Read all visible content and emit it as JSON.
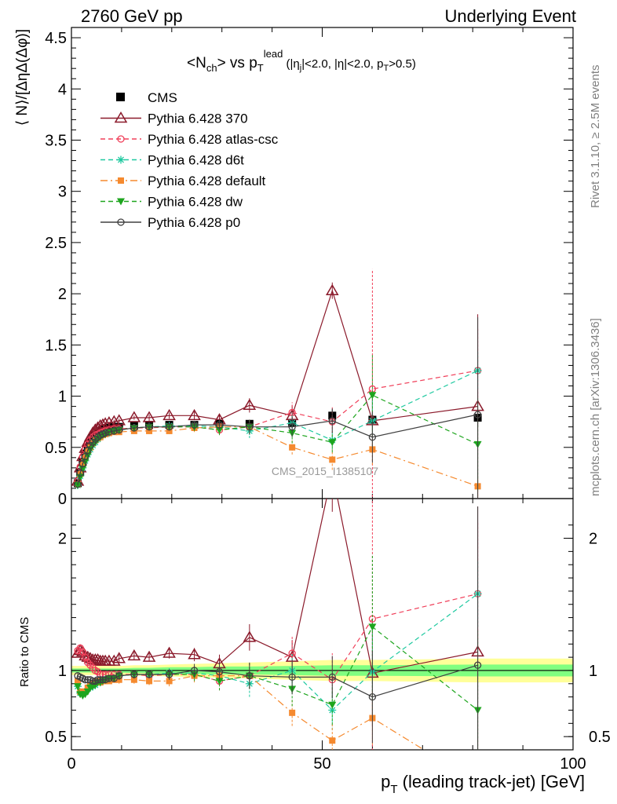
{
  "header": {
    "left": "2760 GeV pp",
    "right": "Underlying Event"
  },
  "side_text": {
    "rivet": "Rivet 3.1.10, ≥ 2.5M events",
    "mcplots": "mcplots.cern.ch [arXiv:1306.3436]"
  },
  "watermark": "CMS_2015_I1385107",
  "colors": {
    "CMS": "#000000",
    "Pythia 6.428 370": "#8b1a2b",
    "Pythia 6.428 atlas-csc": "#f0405a",
    "Pythia 6.428 d6t": "#1fc9a0",
    "Pythia 6.428 default": "#f58a2f",
    "Pythia 6.428 dw": "#1ea51e",
    "Pythia 6.428 p0": "#404040",
    "band_inner": "#80ff80",
    "band_outer": "#ffff99"
  },
  "chart_data": [
    {
      "type": "line",
      "panel": "main",
      "title_parts": {
        "a": "<N",
        "b": "ch",
        "c": "> vs p",
        "d": "T",
        "e": "lead",
        "f": " (|η",
        "g": "j",
        "h": "|<2.0, |η|<2.0, p",
        "i": "T",
        "j": ">0.5)"
      },
      "ylabel": "⟨ N⟩/[ΔηΔ(Δφ)]",
      "xlim": [
        0,
        100
      ],
      "ylim": [
        0,
        4.6
      ],
      "yticks": [
        "0",
        "0.5",
        "1",
        "1.5",
        "2",
        "2.5",
        "3",
        "3.5",
        "4",
        "4.5"
      ],
      "legend": "top-left",
      "x": [
        1.25,
        1.75,
        2.25,
        2.75,
        3.25,
        3.75,
        4.25,
        4.75,
        5.25,
        5.75,
        6.25,
        6.75,
        7.5,
        8.5,
        9.5,
        12.5,
        15.5,
        19.5,
        24.5,
        29.5,
        35.5,
        44.0,
        52.0,
        60.0,
        81.0
      ],
      "series": [
        {
          "name": "CMS",
          "style": "square",
          "values": [
            0.15,
            0.26,
            0.36,
            0.44,
            0.5,
            0.55,
            0.59,
            0.62,
            0.64,
            0.66,
            0.67,
            0.68,
            0.69,
            0.7,
            0.7,
            0.71,
            0.72,
            0.72,
            0.72,
            0.73,
            0.73,
            0.74,
            0.81,
            0.77,
            0.79
          ],
          "err": [
            0.01,
            0.01,
            0.01,
            0.01,
            0.01,
            0.01,
            0.01,
            0.01,
            0.01,
            0.01,
            0.01,
            0.01,
            0.01,
            0.01,
            0.01,
            0.01,
            0.02,
            0.02,
            0.02,
            0.03,
            0.04,
            0.05,
            0.06,
            0.07,
            0.09
          ]
        },
        {
          "name": "Pythia 6.428 370",
          "style": "triangle-open",
          "values": [
            0.17,
            0.3,
            0.41,
            0.49,
            0.55,
            0.6,
            0.64,
            0.67,
            0.69,
            0.71,
            0.72,
            0.73,
            0.74,
            0.75,
            0.76,
            0.79,
            0.79,
            0.81,
            0.81,
            0.77,
            0.91,
            0.81,
            2.03,
            0.76,
            0.9
          ],
          "err": [
            0.01,
            0.01,
            0.01,
            0.01,
            0.01,
            0.01,
            0.01,
            0.01,
            0.01,
            0.01,
            0.01,
            0.01,
            0.01,
            0.02,
            0.02,
            0.02,
            0.03,
            0.03,
            0.04,
            0.05,
            0.07,
            0.1,
            0.08,
            0.3,
            0.9
          ]
        },
        {
          "name": "Pythia 6.428 atlas-csc",
          "style": "circle-open",
          "values": [
            0.17,
            0.31,
            0.41,
            0.48,
            0.53,
            0.57,
            0.6,
            0.62,
            0.63,
            0.64,
            0.65,
            0.66,
            0.67,
            0.68,
            0.68,
            0.69,
            0.69,
            0.7,
            0.7,
            0.67,
            0.7,
            0.84,
            0.75,
            1.07,
            1.25
          ],
          "err": [
            0.01,
            0.01,
            0.01,
            0.01,
            0.01,
            0.01,
            0.01,
            0.01,
            0.01,
            0.01,
            0.01,
            0.01,
            0.01,
            0.02,
            0.02,
            0.02,
            0.03,
            0.03,
            0.04,
            0.05,
            0.07,
            0.1,
            0.15,
            1.17,
            0.42
          ]
        },
        {
          "name": "Pythia 6.428 d6t",
          "style": "star",
          "values": [
            0.13,
            0.22,
            0.3,
            0.37,
            0.43,
            0.48,
            0.52,
            0.55,
            0.58,
            0.6,
            0.62,
            0.63,
            0.64,
            0.66,
            0.67,
            0.69,
            0.7,
            0.71,
            0.71,
            0.7,
            0.66,
            0.74,
            0.57,
            0.76,
            1.25
          ],
          "err": [
            0.01,
            0.01,
            0.01,
            0.01,
            0.01,
            0.01,
            0.01,
            0.01,
            0.01,
            0.01,
            0.01,
            0.01,
            0.01,
            0.02,
            0.02,
            0.02,
            0.03,
            0.03,
            0.04,
            0.05,
            0.07,
            0.1,
            0.1,
            0.25,
            0.18
          ]
        },
        {
          "name": "Pythia 6.428 default",
          "style": "square-dashdot",
          "values": [
            0.14,
            0.24,
            0.33,
            0.4,
            0.46,
            0.5,
            0.54,
            0.57,
            0.59,
            0.6,
            0.62,
            0.63,
            0.64,
            0.65,
            0.65,
            0.66,
            0.66,
            0.66,
            0.69,
            0.7,
            0.7,
            0.5,
            0.38,
            0.48,
            0.12
          ],
          "err": [
            0.01,
            0.01,
            0.01,
            0.01,
            0.01,
            0.01,
            0.01,
            0.01,
            0.01,
            0.01,
            0.01,
            0.01,
            0.01,
            0.02,
            0.02,
            0.02,
            0.03,
            0.03,
            0.04,
            0.05,
            0.07,
            0.07,
            0.1,
            0.15,
            0.1
          ]
        },
        {
          "name": "Pythia 6.428 dw",
          "style": "triangle-down",
          "values": [
            0.13,
            0.21,
            0.29,
            0.36,
            0.42,
            0.48,
            0.52,
            0.55,
            0.58,
            0.6,
            0.62,
            0.63,
            0.65,
            0.66,
            0.67,
            0.69,
            0.7,
            0.7,
            0.7,
            0.67,
            0.7,
            0.64,
            0.55,
            1.01,
            0.53
          ],
          "err": [
            0.01,
            0.01,
            0.01,
            0.01,
            0.01,
            0.01,
            0.01,
            0.01,
            0.01,
            0.01,
            0.01,
            0.01,
            0.01,
            0.02,
            0.02,
            0.02,
            0.03,
            0.03,
            0.04,
            0.05,
            0.07,
            0.1,
            0.1,
            0.4,
            0.45
          ]
        },
        {
          "name": "Pythia 6.428 p0",
          "style": "circle-solid-line",
          "values": [
            0.14,
            0.25,
            0.34,
            0.41,
            0.47,
            0.52,
            0.55,
            0.58,
            0.6,
            0.62,
            0.63,
            0.64,
            0.65,
            0.66,
            0.67,
            0.69,
            0.7,
            0.7,
            0.72,
            0.72,
            0.7,
            0.7,
            0.76,
            0.6,
            0.82
          ],
          "err": [
            0.01,
            0.01,
            0.01,
            0.01,
            0.01,
            0.01,
            0.01,
            0.01,
            0.01,
            0.01,
            0.01,
            0.01,
            0.01,
            0.02,
            0.02,
            0.02,
            0.03,
            0.03,
            0.04,
            0.05,
            0.07,
            0.1,
            0.12,
            0.25,
            0.95
          ]
        }
      ]
    },
    {
      "type": "line",
      "panel": "ratio",
      "ylabel": "Ratio to CMS",
      "xlabel_parts": {
        "a": "p",
        "b": "T",
        "c": " (leading track-jet) [GeV]"
      },
      "xlim": [
        0,
        100
      ],
      "xticks": [
        "0",
        "50",
        "100"
      ],
      "ylim": [
        0.4,
        2.3
      ],
      "yticks": [
        "0.5",
        "1",
        "2"
      ],
      "reference": 1,
      "band": {
        "x": [
          0,
          1.25,
          1.75,
          2.25,
          2.75,
          3.25,
          3.75,
          4.25,
          4.75,
          5.25,
          5.75,
          6.25,
          6.75,
          7.5,
          8.5,
          9.5,
          12.5,
          15.5,
          19.5,
          24.5,
          29.5,
          35.5,
          44.0,
          52.0,
          60.0,
          81.0,
          100
        ],
        "inner": [
          0.015,
          0.015,
          0.015,
          0.015,
          0.015,
          0.015,
          0.015,
          0.015,
          0.015,
          0.015,
          0.015,
          0.015,
          0.015,
          0.015,
          0.015,
          0.015,
          0.02,
          0.02,
          0.025,
          0.025,
          0.03,
          0.03,
          0.035,
          0.04,
          0.04,
          0.045,
          0.045
        ],
        "outer": [
          0.035,
          0.035,
          0.035,
          0.035,
          0.035,
          0.035,
          0.035,
          0.035,
          0.035,
          0.035,
          0.035,
          0.035,
          0.035,
          0.035,
          0.035,
          0.035,
          0.04,
          0.04,
          0.045,
          0.05,
          0.055,
          0.06,
          0.07,
          0.08,
          0.08,
          0.09,
          0.09
        ]
      },
      "series": [
        {
          "name": "Pythia 6.428 370",
          "style": "triangle-open",
          "values": [
            1.13,
            1.15,
            1.14,
            1.11,
            1.1,
            1.09,
            1.08,
            1.08,
            1.08,
            1.07,
            1.07,
            1.07,
            1.07,
            1.07,
            1.09,
            1.11,
            1.1,
            1.13,
            1.12,
            1.05,
            1.25,
            1.1,
            2.5,
            0.98,
            1.14
          ],
          "err": [
            0.02,
            0.02,
            0.02,
            0.02,
            0.02,
            0.02,
            0.02,
            0.02,
            0.02,
            0.02,
            0.02,
            0.02,
            0.02,
            0.02,
            0.03,
            0.03,
            0.03,
            0.04,
            0.05,
            0.07,
            0.1,
            0.13,
            0.3,
            0.4,
            1.1
          ]
        },
        {
          "name": "Pythia 6.428 atlas-csc",
          "style": "circle-open",
          "values": [
            1.15,
            1.17,
            1.14,
            1.1,
            1.06,
            1.04,
            1.02,
            1.0,
            0.99,
            0.97,
            0.97,
            0.97,
            0.97,
            0.97,
            0.97,
            0.97,
            0.96,
            0.97,
            0.97,
            0.92,
            0.96,
            1.13,
            0.93,
            1.39,
            1.58
          ],
          "err": [
            0.02,
            0.02,
            0.02,
            0.02,
            0.02,
            0.02,
            0.02,
            0.02,
            0.02,
            0.02,
            0.02,
            0.02,
            0.02,
            0.02,
            0.03,
            0.03,
            0.03,
            0.04,
            0.05,
            0.07,
            0.1,
            0.13,
            0.2,
            1.5,
            0.55
          ]
        },
        {
          "name": "Pythia 6.428 d6t",
          "style": "star",
          "values": [
            0.88,
            0.83,
            0.83,
            0.84,
            0.86,
            0.87,
            0.88,
            0.89,
            0.91,
            0.91,
            0.92,
            0.93,
            0.93,
            0.94,
            0.96,
            0.97,
            0.97,
            0.98,
            0.98,
            0.96,
            0.9,
            1.0,
            0.7,
            0.99,
            1.58
          ],
          "err": [
            0.02,
            0.02,
            0.02,
            0.02,
            0.02,
            0.02,
            0.02,
            0.02,
            0.02,
            0.02,
            0.02,
            0.02,
            0.02,
            0.02,
            0.03,
            0.03,
            0.03,
            0.04,
            0.05,
            0.07,
            0.1,
            0.13,
            0.15,
            0.35,
            0.25
          ]
        },
        {
          "name": "Pythia 6.428 default",
          "style": "square-dashdot",
          "values": [
            0.92,
            0.84,
            0.84,
            0.84,
            0.87,
            0.89,
            0.9,
            0.91,
            0.92,
            0.91,
            0.92,
            0.92,
            0.92,
            0.93,
            0.93,
            0.93,
            0.92,
            0.92,
            0.96,
            0.96,
            0.96,
            0.68,
            0.47,
            0.64,
            0.15
          ],
          "err": [
            0.02,
            0.02,
            0.02,
            0.02,
            0.02,
            0.02,
            0.02,
            0.02,
            0.02,
            0.02,
            0.02,
            0.02,
            0.02,
            0.02,
            0.03,
            0.03,
            0.03,
            0.04,
            0.05,
            0.07,
            0.1,
            0.1,
            0.13,
            0.2,
            0.13
          ]
        },
        {
          "name": "Pythia 6.428 dw",
          "style": "triangle-down",
          "values": [
            0.88,
            0.82,
            0.81,
            0.82,
            0.84,
            0.87,
            0.88,
            0.89,
            0.91,
            0.91,
            0.92,
            0.93,
            0.94,
            0.94,
            0.96,
            0.97,
            0.97,
            0.97,
            0.97,
            0.92,
            0.96,
            0.86,
            0.74,
            1.33,
            0.7
          ],
          "err": [
            0.02,
            0.02,
            0.02,
            0.02,
            0.02,
            0.02,
            0.02,
            0.02,
            0.02,
            0.02,
            0.02,
            0.02,
            0.02,
            0.02,
            0.03,
            0.03,
            0.03,
            0.04,
            0.05,
            0.07,
            0.1,
            0.13,
            0.15,
            0.55,
            0.6
          ]
        },
        {
          "name": "Pythia 6.428 p0",
          "style": "circle-solid-line",
          "values": [
            0.96,
            0.95,
            0.94,
            0.93,
            0.93,
            0.93,
            0.92,
            0.92,
            0.93,
            0.93,
            0.93,
            0.93,
            0.94,
            0.94,
            0.96,
            0.97,
            0.97,
            0.97,
            1.0,
            0.99,
            0.96,
            0.95,
            0.95,
            0.8,
            1.04
          ],
          "err": [
            0.02,
            0.02,
            0.02,
            0.02,
            0.02,
            0.02,
            0.02,
            0.02,
            0.02,
            0.02,
            0.02,
            0.02,
            0.02,
            0.02,
            0.03,
            0.03,
            0.03,
            0.04,
            0.05,
            0.07,
            0.1,
            0.13,
            0.16,
            0.35,
            1.2
          ]
        }
      ]
    }
  ]
}
